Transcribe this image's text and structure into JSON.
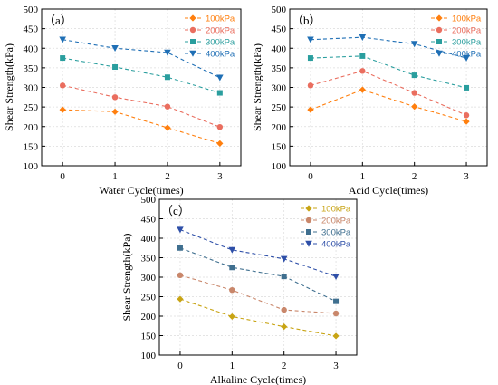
{
  "chart_data": [
    {
      "type": "line",
      "panel_label": "（a）",
      "xlabel": "Water Cycle(times)",
      "ylabel": "Shear Strength(kPa)",
      "x": [
        0,
        1,
        2,
        3
      ],
      "x_tick_labels": [
        "0",
        "1",
        "2",
        "3"
      ],
      "ylim": [
        100,
        500
      ],
      "y_ticks": [
        "100",
        "150",
        "200",
        "250",
        "300",
        "350",
        "400",
        "450",
        "500"
      ],
      "grid": true,
      "legend_position": "top-right",
      "series": [
        {
          "name": "100kPa",
          "values": [
            243,
            238,
            197,
            157
          ],
          "color": "#FF7F0E",
          "marker": "diamond"
        },
        {
          "name": "200kPa",
          "values": [
            305,
            275,
            251,
            199
          ],
          "color": "#EA6E5F",
          "marker": "circle"
        },
        {
          "name": "300kPa",
          "values": [
            375,
            352,
            326,
            286
          ],
          "color": "#2A9E9E",
          "marker": "square"
        },
        {
          "name": "400kPa",
          "values": [
            422,
            400,
            389,
            325
          ],
          "color": "#1F6FB5",
          "marker": "triangle-down"
        }
      ]
    },
    {
      "type": "line",
      "panel_label": "（b）",
      "xlabel": "Acid Cycle(times)",
      "ylabel": "Shear Strength(kPa)",
      "x": [
        0,
        1,
        2,
        3
      ],
      "x_tick_labels": [
        "0",
        "1",
        "2",
        "3"
      ],
      "ylim": [
        100,
        500
      ],
      "y_ticks": [
        "100",
        "150",
        "200",
        "250",
        "300",
        "350",
        "400",
        "450",
        "500"
      ],
      "grid": true,
      "legend_position": "top-right",
      "series": [
        {
          "name": "100kPa",
          "values": [
            243,
            294,
            251,
            213
          ],
          "color": "#FF7F0E",
          "marker": "diamond"
        },
        {
          "name": "200kPa",
          "values": [
            305,
            342,
            286,
            229
          ],
          "color": "#EA6E5F",
          "marker": "circle"
        },
        {
          "name": "300kPa",
          "values": [
            375,
            380,
            331,
            299
          ],
          "color": "#2A9E9E",
          "marker": "square"
        },
        {
          "name": "400kPa",
          "values": [
            422,
            428,
            411,
            375
          ],
          "color": "#1F6FB5",
          "marker": "triangle-down"
        }
      ]
    },
    {
      "type": "line",
      "panel_label": "（c）",
      "xlabel": "Alkaline Cycle(times)",
      "ylabel": "Shear Strength(kPa)",
      "x": [
        0,
        1,
        2,
        3
      ],
      "x_tick_labels": [
        "0",
        "1",
        "2",
        "3"
      ],
      "ylim": [
        100,
        500
      ],
      "y_ticks": [
        "100",
        "150",
        "200",
        "250",
        "300",
        "350",
        "400",
        "450",
        "500"
      ],
      "grid": true,
      "legend_position": "top-right",
      "series": [
        {
          "name": "100kPa",
          "values": [
            244,
            199,
            173,
            149
          ],
          "color": "#C8A414",
          "marker": "diamond"
        },
        {
          "name": "200kPa",
          "values": [
            305,
            267,
            216,
            207
          ],
          "color": "#C9876B",
          "marker": "circle"
        },
        {
          "name": "300kPa",
          "values": [
            375,
            325,
            302,
            238
          ],
          "color": "#3F6F8F",
          "marker": "square"
        },
        {
          "name": "400kPa",
          "values": [
            422,
            370,
            347,
            302
          ],
          "color": "#2E4FA8",
          "marker": "triangle-down"
        }
      ]
    }
  ]
}
